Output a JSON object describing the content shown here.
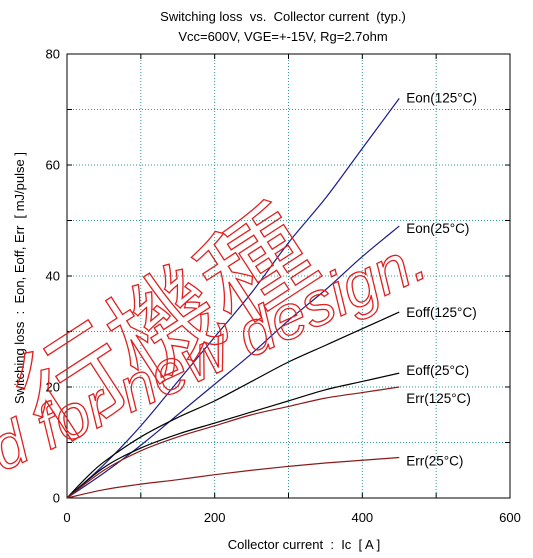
{
  "chart_data": {
    "type": "line",
    "title": "Switching loss  vs.  Collector current  (typ.)",
    "subtitle": "Vcc=600V, VGE=+-15V, Rg=2.7ohm",
    "xlabel": "Collector current  :  Ic  [ A ]",
    "ylabel": "Switching loss  :  Eon, Eoff, Err  [ mJ/pulse ]",
    "xlim": [
      0,
      600
    ],
    "ylim": [
      0,
      80
    ],
    "xticks": [
      0,
      200,
      400,
      600
    ],
    "yticks": [
      0,
      20,
      40,
      60,
      80
    ],
    "grid": true,
    "x_grid_step": 100,
    "y_grid_step": 10,
    "legend": "end-of-line",
    "series": [
      {
        "name": "Eon(125°C)",
        "color": "#1c1c8c",
        "x": [
          0,
          50,
          100,
          150,
          200,
          250,
          300,
          350,
          400,
          450
        ],
        "y": [
          0,
          6,
          13,
          21,
          29,
          37,
          46,
          54,
          63,
          72
        ]
      },
      {
        "name": "Eon(25°C)",
        "color": "#1c1c8c",
        "x": [
          0,
          50,
          100,
          150,
          200,
          250,
          300,
          350,
          400,
          450
        ],
        "y": [
          0,
          4.5,
          9.5,
          15,
          20.5,
          26,
          32,
          37.5,
          43.5,
          49
        ]
      },
      {
        "name": "Eoff(125°C)",
        "color": "#000000",
        "x": [
          0,
          25,
          50,
          100,
          150,
          200,
          250,
          300,
          350,
          400,
          450
        ],
        "y": [
          0,
          3.5,
          6.5,
          11,
          14.5,
          17.5,
          21,
          24.5,
          27.5,
          30.5,
          33.5
        ]
      },
      {
        "name": "Eoff(25°C)",
        "color": "#000000",
        "x": [
          0,
          50,
          100,
          150,
          200,
          250,
          300,
          350,
          400,
          450
        ],
        "y": [
          0,
          5.5,
          9,
          11.5,
          13.5,
          15.5,
          17.5,
          19.5,
          21,
          22.5
        ]
      },
      {
        "name": "Err(125°C)",
        "color": "#8b1a1a",
        "x": [
          0,
          50,
          100,
          150,
          200,
          250,
          300,
          350,
          400,
          450
        ],
        "y": [
          0,
          5,
          8.5,
          11,
          13,
          15,
          16.5,
          18,
          19,
          20
        ]
      },
      {
        "name": "Err(25°C)",
        "color": "#8b1a1a",
        "x": [
          0,
          50,
          100,
          150,
          200,
          250,
          300,
          350,
          400,
          450
        ],
        "y": [
          0,
          1.5,
          2.5,
          3.3,
          4.2,
          5,
          5.7,
          6.3,
          6.8,
          7.3
        ]
      }
    ]
  },
  "watermark": {
    "color": "#e02020",
    "kanji": "行機種",
    "text": "d for new design."
  }
}
